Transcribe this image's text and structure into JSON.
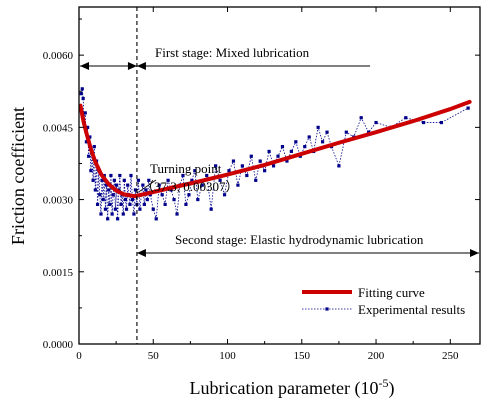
{
  "chart_data": {
    "type": "scatter",
    "xlabel": "Lubrication parameter (10",
    "xlabel_exp": "-5",
    "xlabel_close": ")",
    "ylabel": "Friction coefficient",
    "xlim": [
      0,
      270
    ],
    "ylim": [
      0,
      0.007
    ],
    "x_ticks": [
      0,
      50,
      100,
      150,
      200,
      250
    ],
    "x_tick_labels": [
      "0",
      "50",
      "100",
      "150",
      "200",
      "250"
    ],
    "y_ticks": [
      0,
      0.0015,
      0.003,
      0.0045,
      0.006
    ],
    "y_tick_labels": [
      "0.0000",
      "0.0015",
      "0.0030",
      "0.0045",
      "0.0060"
    ],
    "annotations": {
      "stage1": "First stage: Mixed lubrication",
      "stage2": "Second stage: Elastic hydrodynamic lubrication",
      "turning_title": "Turning point",
      "turning_coords": "（37.3, 0.00307）",
      "turning_x": 37.3,
      "turning_y": 0.00307,
      "divider_x": 39
    },
    "legend": {
      "position": "lower-right",
      "entries": [
        "Fitting curve",
        "Experimental results"
      ]
    },
    "colors": {
      "fit": "#cc0000",
      "experimental": "#00008b",
      "axis": "#000000"
    },
    "series": [
      {
        "name": "Fitting curve",
        "x": [
          1,
          3,
          5,
          8,
          11,
          15,
          20,
          25,
          30,
          37.3,
          45,
          60,
          80,
          100,
          125,
          150,
          175,
          200,
          225,
          250,
          263
        ],
        "y": [
          0.00495,
          0.00463,
          0.00438,
          0.00405,
          0.00378,
          0.00352,
          0.00332,
          0.00319,
          0.00311,
          0.00307,
          0.00312,
          0.00323,
          0.00337,
          0.00352,
          0.00372,
          0.00395,
          0.00418,
          0.0044,
          0.00463,
          0.00488,
          0.00503
        ]
      },
      {
        "name": "Experimental results",
        "x": [
          1.5,
          2.2,
          2.8,
          3.5,
          4.2,
          5,
          5.8,
          6.5,
          7.3,
          8,
          8.8,
          9.5,
          10.3,
          11,
          11.8,
          12.5,
          13.3,
          14,
          14.8,
          15.5,
          16.3,
          17,
          17.8,
          18.5,
          19.3,
          20,
          20.8,
          21.5,
          22.3,
          23,
          23.8,
          24.5,
          25.3,
          26,
          26.8,
          27.5,
          28.3,
          29,
          29.8,
          30.5,
          31.3,
          32,
          32.8,
          33.5,
          34.3,
          35,
          36,
          37,
          38,
          39,
          40,
          41,
          42,
          43,
          44,
          45,
          46,
          47,
          48,
          50,
          52,
          54,
          56,
          58,
          60,
          62,
          64,
          66,
          68,
          70,
          72,
          74,
          76,
          78,
          80,
          83,
          86,
          89,
          92,
          95,
          98,
          101,
          104,
          107,
          110,
          113,
          116,
          119,
          122,
          125,
          128,
          131,
          134,
          137,
          140,
          143,
          146,
          149,
          152,
          155,
          158,
          161,
          164,
          167,
          170,
          175,
          180,
          185,
          190,
          195,
          200,
          210,
          220,
          232,
          244,
          262
        ],
        "y": [
          0.0052,
          0.0053,
          0.0051,
          0.0046,
          0.0048,
          0.0042,
          0.0045,
          0.0039,
          0.0043,
          0.0036,
          0.004,
          0.0034,
          0.0041,
          0.0032,
          0.0038,
          0.0029,
          0.0036,
          0.0031,
          0.0027,
          0.0034,
          0.003,
          0.0035,
          0.0028,
          0.0033,
          0.0026,
          0.0032,
          0.0029,
          0.0035,
          0.0027,
          0.0031,
          0.0034,
          0.0028,
          0.0033,
          0.0026,
          0.0032,
          0.0035,
          0.0029,
          0.0031,
          0.0027,
          0.0034,
          0.003,
          0.0028,
          0.0033,
          0.0031,
          0.0029,
          0.0035,
          0.003,
          0.0027,
          0.0032,
          0.0029,
          0.0034,
          0.0028,
          0.0031,
          0.0033,
          0.0029,
          0.0032,
          0.003,
          0.0034,
          0.0031,
          0.0028,
          0.0026,
          0.0033,
          0.0031,
          0.0029,
          0.0034,
          0.0032,
          0.003,
          0.0027,
          0.0033,
          0.0035,
          0.0029,
          0.0031,
          0.0034,
          0.0036,
          0.003,
          0.0033,
          0.0035,
          0.0028,
          0.0037,
          0.0034,
          0.0031,
          0.0036,
          0.0038,
          0.0033,
          0.0037,
          0.0035,
          0.0039,
          0.0034,
          0.0038,
          0.0036,
          0.004,
          0.0037,
          0.0039,
          0.0041,
          0.0038,
          0.004,
          0.0042,
          0.0039,
          0.0041,
          0.0043,
          0.004,
          0.0045,
          0.0042,
          0.0044,
          0.0041,
          0.0037,
          0.0044,
          0.0043,
          0.0047,
          0.0044,
          0.0046,
          0.0045,
          0.0047,
          0.0046,
          0.0046,
          0.0049
        ]
      }
    ]
  }
}
